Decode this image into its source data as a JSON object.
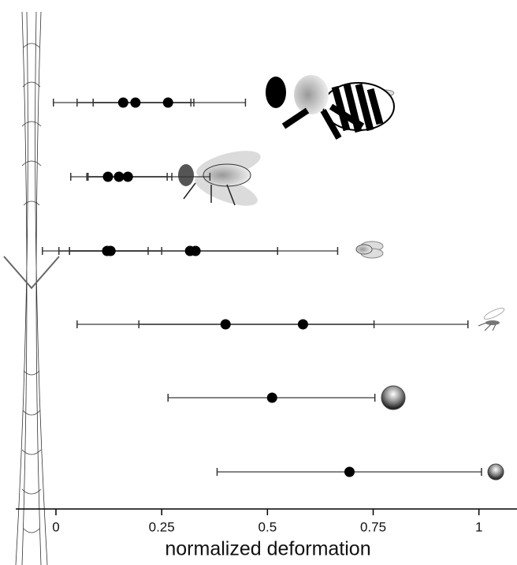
{
  "chart_data": {
    "type": "errorpoints",
    "xlabel": "normalized deformation",
    "xlim": [
      -0.095,
      1.09
    ],
    "xticks": [
      0,
      0.25,
      0.5,
      0.75,
      1
    ],
    "color": "#000000",
    "rows": [
      {
        "values": [
          0.159,
          0.188,
          0.265
        ],
        "lows": [
          0.088,
          0.05,
          -0.006
        ],
        "highs": [
          0.319,
          0.326,
          0.448
        ]
      },
      {
        "values": [
          0.123,
          0.149,
          0.17
        ],
        "lows": [
          0.076,
          0.073,
          0.035
        ],
        "highs": [
          0.263,
          0.274,
          0.364
        ]
      },
      {
        "values": [
          0.121,
          0.129,
          0.317,
          0.33
        ],
        "lows": [
          0.032,
          0.007,
          0.032,
          -0.032
        ],
        "highs": [
          0.218,
          0.25,
          0.524,
          0.666
        ]
      },
      {
        "values": [
          0.401,
          0.584
        ],
        "lows": [
          0.196,
          0.05
        ],
        "highs": [
          0.752,
          0.974
        ]
      },
      {
        "values": [
          0.511
        ],
        "lows": [
          0.265
        ],
        "highs": [
          0.754
        ]
      },
      {
        "values": [
          0.694
        ],
        "lows": [
          0.381
        ],
        "highs": [
          1.006
        ]
      }
    ]
  }
}
